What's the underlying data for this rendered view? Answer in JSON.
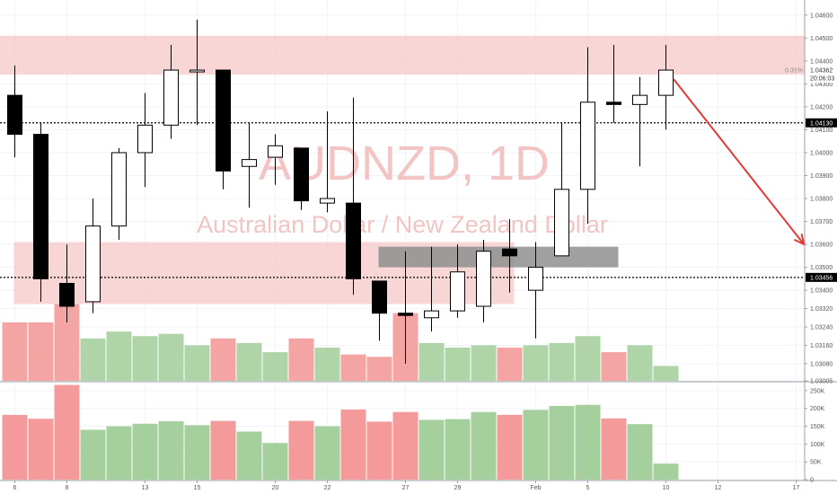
{
  "chart_data": {
    "type": "candlestick",
    "symbol": "AUDNZD, 1D",
    "description": "Australian Dollar / New Zealand Dollar",
    "price_axis": {
      "range": [
        1.03005,
        1.0465
      ],
      "ticks": [
        1.046,
        1.045,
        1.044,
        1.043,
        1.042,
        1.041,
        1.04,
        1.039,
        1.038,
        1.037,
        1.036,
        1.035,
        1.034,
        1.0332,
        1.0324,
        1.0316,
        1.0308,
        1.03005
      ],
      "tick_labels": [
        "1.04600",
        "1.04500",
        "1.04400",
        "1.04300",
        "1.04200",
        "1.04100",
        "1.04000",
        "1.03900",
        "1.03800",
        "1.03700",
        "1.03600",
        "1.03500",
        "1.03400",
        "1.03320",
        "1.03240",
        "1.03160",
        "1.03080",
        "1.03005"
      ]
    },
    "volume_axis": {
      "range": [
        0,
        270000
      ],
      "ticks": [
        0,
        50000,
        100000,
        150000,
        200000,
        250000
      ],
      "tick_labels": [
        "0",
        "50K",
        "100K",
        "150K",
        "200K",
        "250K"
      ]
    },
    "x_ticks": [
      {
        "label": "6",
        "bar": 0
      },
      {
        "label": "8",
        "bar": 2
      },
      {
        "label": "13",
        "bar": 5
      },
      {
        "label": "15",
        "bar": 7
      },
      {
        "label": "20",
        "bar": 10
      },
      {
        "label": "22",
        "bar": 12
      },
      {
        "label": "27",
        "bar": 15
      },
      {
        "label": "29",
        "bar": 17
      },
      {
        "label": "Feb",
        "bar": 20
      },
      {
        "label": "5",
        "bar": 22
      },
      {
        "label": "10",
        "bar": 25
      },
      {
        "label": "12",
        "bar": 27
      },
      {
        "label": "17",
        "bar": 30
      }
    ],
    "candles": [
      {
        "open": 1.0425,
        "high": 1.0438,
        "low": 1.0398,
        "close": 1.0408,
        "volume": 182000
      },
      {
        "open": 1.0408,
        "high": 1.0413,
        "low": 1.0335,
        "close": 1.0345,
        "volume": 171000
      },
      {
        "open": 1.0343,
        "high": 1.036,
        "low": 1.0326,
        "close": 1.0333,
        "volume": 266000
      },
      {
        "open": 1.0335,
        "high": 1.038,
        "low": 1.033,
        "close": 1.0368,
        "volume": 140000
      },
      {
        "open": 1.0368,
        "high": 1.0402,
        "low": 1.0362,
        "close": 1.04,
        "volume": 150000
      },
      {
        "open": 1.04,
        "high": 1.0426,
        "low": 1.0385,
        "close": 1.0412,
        "volume": 157000
      },
      {
        "open": 1.0412,
        "high": 1.0447,
        "low": 1.0406,
        "close": 1.0436,
        "volume": 164000
      },
      {
        "open": 1.0436,
        "high": 1.0458,
        "low": 1.0412,
        "close": 1.0436,
        "volume": 153000
      },
      {
        "open": 1.0436,
        "high": 1.0436,
        "low": 1.0384,
        "close": 1.0392,
        "volume": 165000
      },
      {
        "open": 1.0394,
        "high": 1.0413,
        "low": 1.0376,
        "close": 1.0397,
        "volume": 135000
      },
      {
        "open": 1.0398,
        "high": 1.0408,
        "low": 1.0386,
        "close": 1.0403,
        "volume": 103000
      },
      {
        "open": 1.0402,
        "high": 1.0402,
        "low": 1.0375,
        "close": 1.0379,
        "volume": 165000
      },
      {
        "open": 1.0378,
        "high": 1.0418,
        "low": 1.0374,
        "close": 1.038,
        "volume": 150000
      },
      {
        "open": 1.0378,
        "high": 1.0424,
        "low": 1.0338,
        "close": 1.0345,
        "volume": 197000
      },
      {
        "open": 1.0344,
        "high": 1.0344,
        "low": 1.0318,
        "close": 1.033,
        "volume": 163000
      },
      {
        "open": 1.033,
        "high": 1.0357,
        "low": 1.0308,
        "close": 1.0329,
        "volume": 190000
      },
      {
        "open": 1.0328,
        "high": 1.0359,
        "low": 1.0322,
        "close": 1.0331,
        "volume": 168000
      },
      {
        "open": 1.0331,
        "high": 1.036,
        "low": 1.0328,
        "close": 1.0348,
        "volume": 170000
      },
      {
        "open": 1.0333,
        "high": 1.0362,
        "low": 1.0326,
        "close": 1.0357,
        "volume": 190000
      },
      {
        "open": 1.0358,
        "high": 1.0371,
        "low": 1.0339,
        "close": 1.0355,
        "volume": 182000
      },
      {
        "open": 1.034,
        "high": 1.0361,
        "low": 1.0319,
        "close": 1.035,
        "volume": 196000
      },
      {
        "open": 1.0355,
        "high": 1.0413,
        "low": 1.0355,
        "close": 1.0384,
        "volume": 207000
      },
      {
        "open": 1.0384,
        "high": 1.0446,
        "low": 1.0369,
        "close": 1.0422,
        "volume": 210000
      },
      {
        "open": 1.0422,
        "high": 1.0447,
        "low": 1.0413,
        "close": 1.0421,
        "volume": 172000
      },
      {
        "open": 1.0421,
        "high": 1.0433,
        "low": 1.0394,
        "close": 1.0425,
        "volume": 156000
      },
      {
        "open": 1.0425,
        "high": 1.0447,
        "low": 1.041,
        "close": 1.0436,
        "volume": 45000
      }
    ],
    "volume_colors": [
      "red",
      "red",
      "red",
      "green",
      "green",
      "green",
      "green",
      "green",
      "red",
      "green",
      "green",
      "red",
      "green",
      "red",
      "red",
      "red",
      "green",
      "green",
      "green",
      "red",
      "green",
      "green",
      "green",
      "red",
      "green",
      "green"
    ],
    "price_volume_bars": [
      {
        "value": 1.0326,
        "color": "red"
      },
      {
        "value": 1.0326,
        "color": "red"
      },
      {
        "value": 1.0334,
        "color": "red"
      },
      {
        "value": 1.0319,
        "color": "green"
      },
      {
        "value": 1.0322,
        "color": "green"
      },
      {
        "value": 1.032,
        "color": "green"
      },
      {
        "value": 1.0321,
        "color": "green"
      },
      {
        "value": 1.0316,
        "color": "green"
      },
      {
        "value": 1.0319,
        "color": "red"
      },
      {
        "value": 1.0317,
        "color": "green"
      },
      {
        "value": 1.0313,
        "color": "green"
      },
      {
        "value": 1.0319,
        "color": "red"
      },
      {
        "value": 1.0315,
        "color": "green"
      },
      {
        "value": 1.0312,
        "color": "red"
      },
      {
        "value": 1.0311,
        "color": "red"
      },
      {
        "value": 1.033,
        "color": "red"
      },
      {
        "value": 1.0317,
        "color": "green"
      },
      {
        "value": 1.0315,
        "color": "green"
      },
      {
        "value": 1.0316,
        "color": "green"
      },
      {
        "value": 1.0315,
        "color": "red"
      },
      {
        "value": 1.0316,
        "color": "green"
      },
      {
        "value": 1.0317,
        "color": "green"
      },
      {
        "value": 1.032,
        "color": "green"
      },
      {
        "value": 1.0313,
        "color": "red"
      },
      {
        "value": 1.0316,
        "color": "green"
      },
      {
        "value": 1.0307,
        "color": "green"
      }
    ],
    "zones": [
      {
        "name": "upper-resistance-zone",
        "from_bar": -1,
        "to_bar": 31,
        "top": 1.0451,
        "bottom": 1.0434,
        "color": "#f5c5c5"
      },
      {
        "name": "lower-support-zone",
        "from_bar": 0,
        "to_bar": 19,
        "top": 1.0361,
        "bottom": 1.0334,
        "color": "#f5c5c5"
      },
      {
        "name": "grey-zone",
        "from_bar": 14,
        "to_bar": 23,
        "top": 1.0359,
        "bottom": 1.035,
        "color": "#8f8f8f"
      }
    ],
    "horizontal_lines": [
      {
        "price": 1.0413,
        "label": "1.04130"
      },
      {
        "price": 1.03456,
        "label": "1.03456"
      }
    ],
    "arrow": {
      "from_bar": 25.3,
      "from_price": 1.0432,
      "to_bar": 30.3,
      "to_price": 1.036,
      "color": "#e53935"
    },
    "current_price": {
      "value": 1.0436,
      "label": "1.04362",
      "change": "0.31%",
      "countdown": "20:06:03"
    },
    "colors": {
      "up": "#ffffff",
      "down": "#000000",
      "volume_up": "#a6cf9e",
      "volume_down": "#f49a9a",
      "grid": "#f0f3fa"
    }
  }
}
